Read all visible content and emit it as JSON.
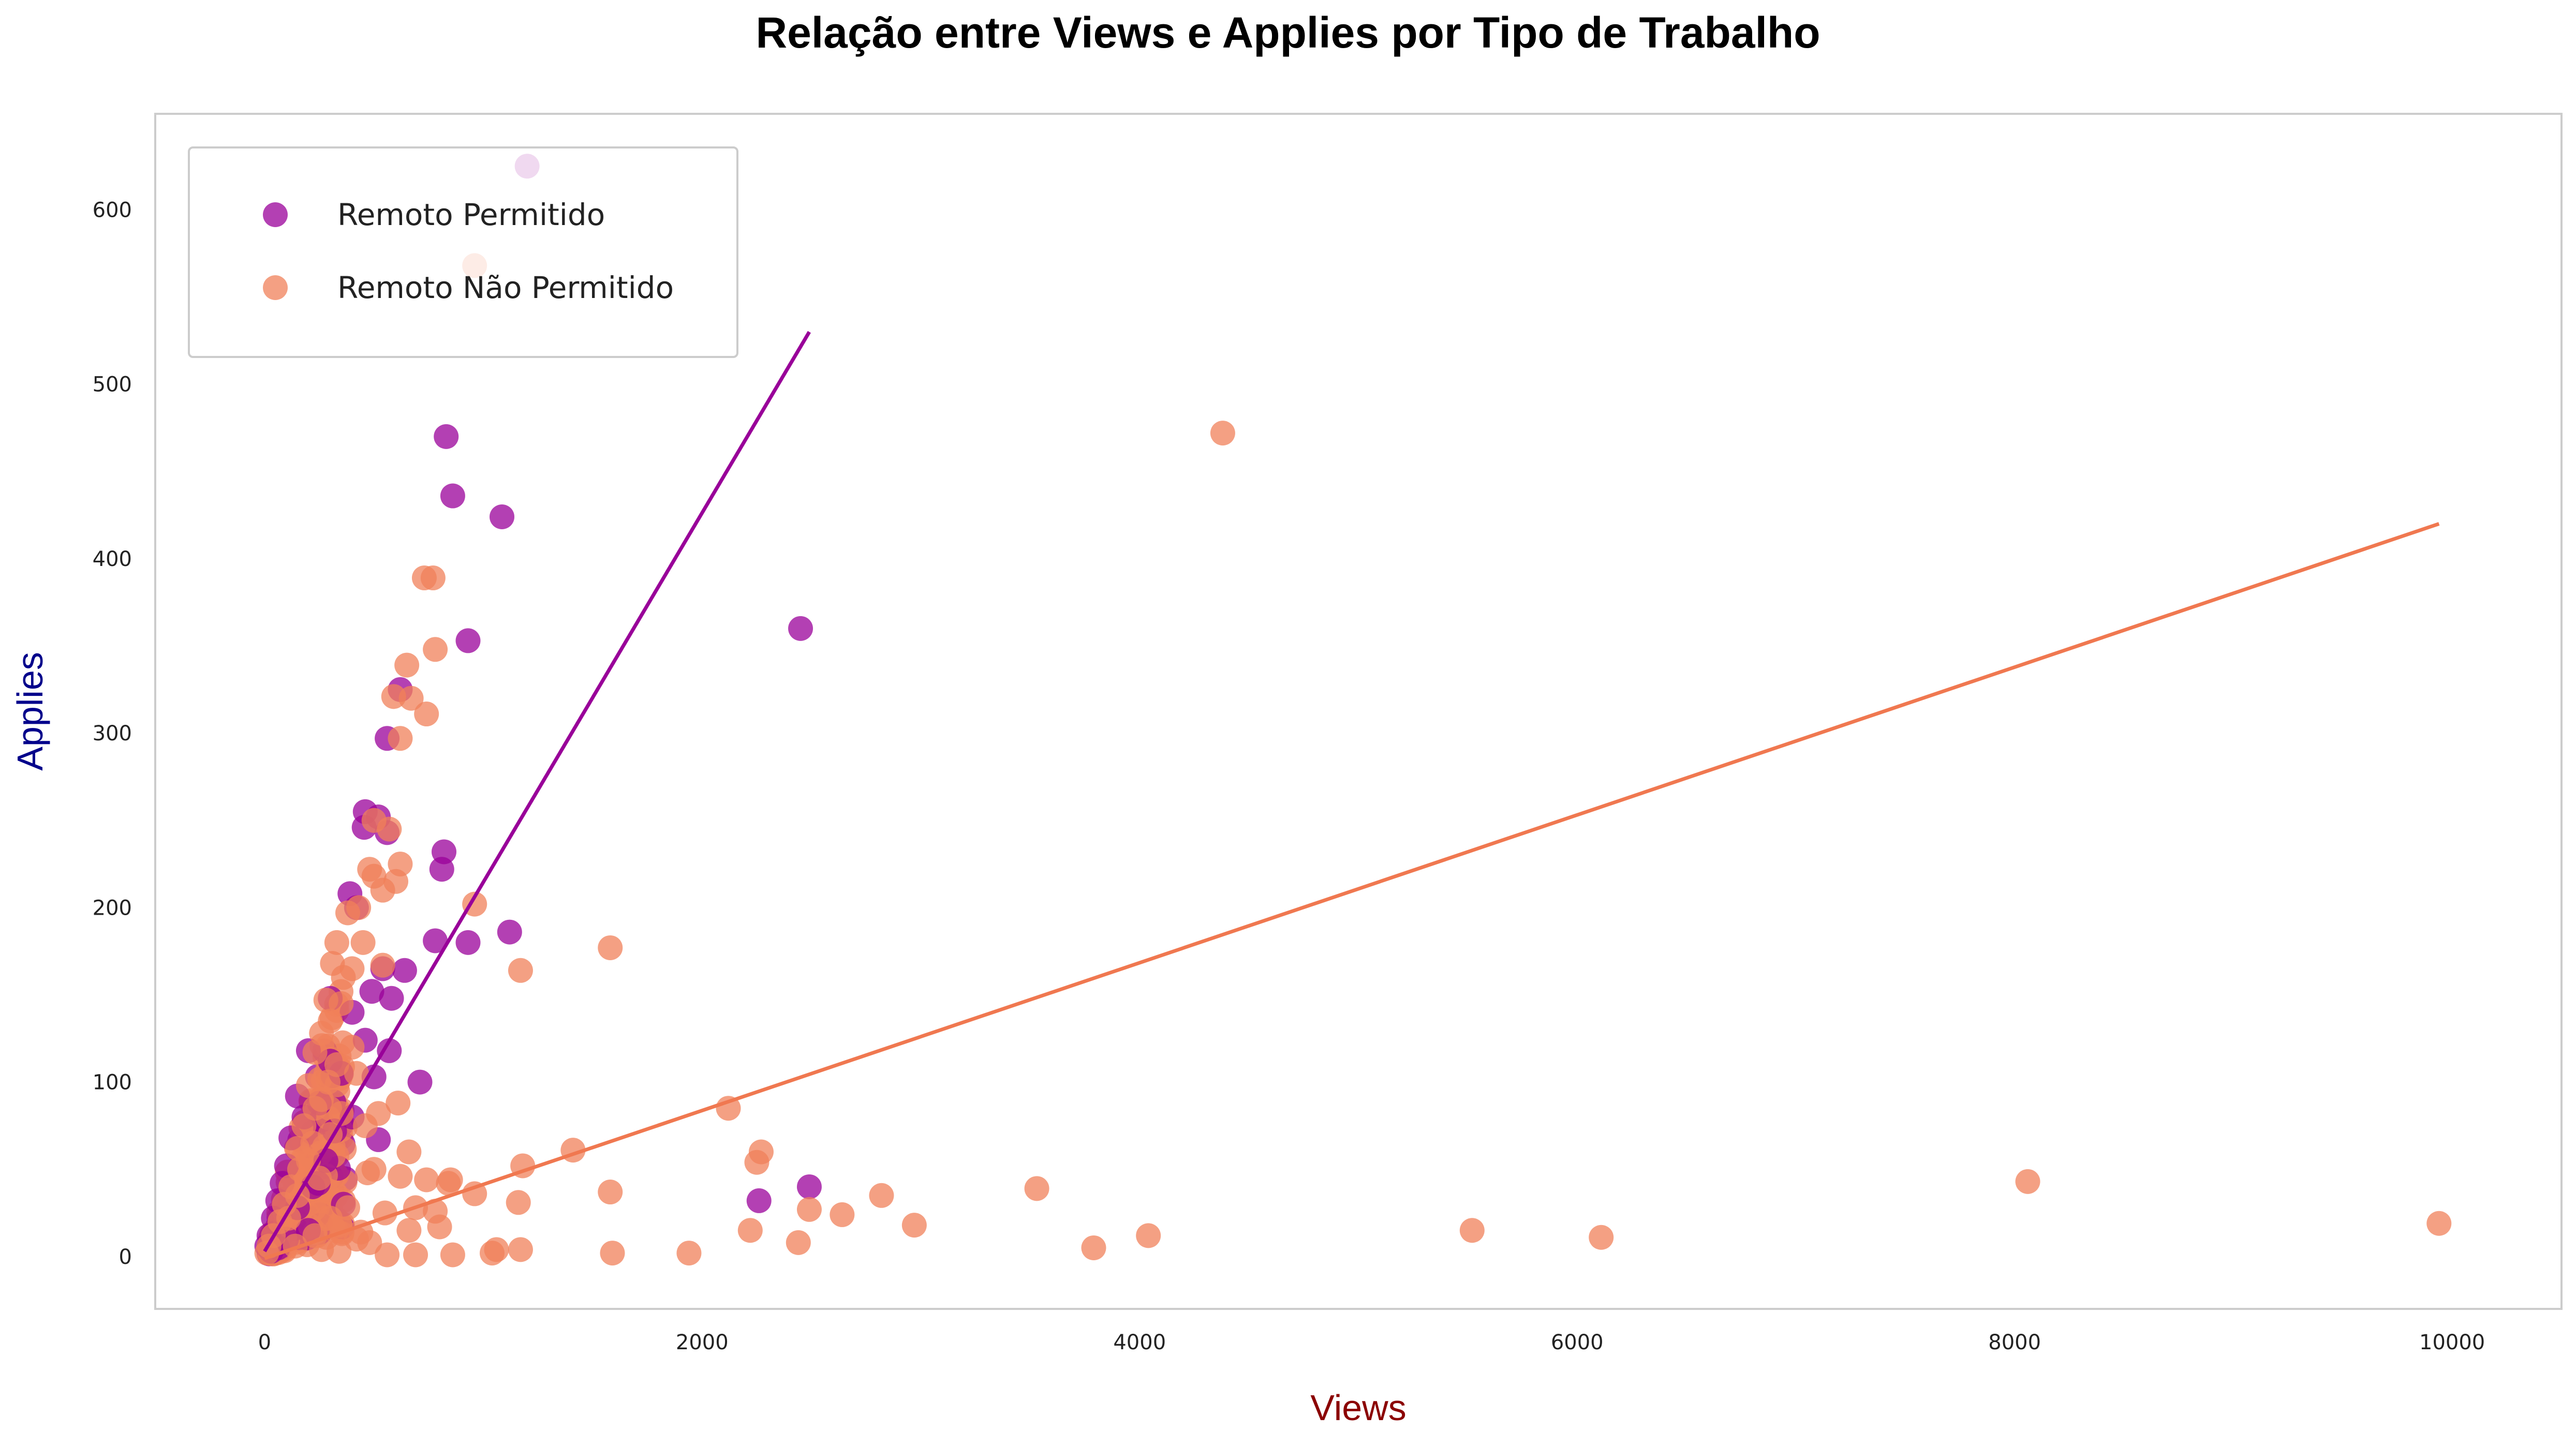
{
  "chart_data": {
    "type": "scatter",
    "title": "Relação entre Views e Applies por Tipo de Trabalho",
    "xlabel": "Views",
    "ylabel": "Applies",
    "xlim": [
      -500,
      10500
    ],
    "ylim": [
      -30,
      655
    ],
    "xticks": [
      0,
      2000,
      4000,
      6000,
      8000,
      10000
    ],
    "yticks": [
      0,
      100,
      200,
      300,
      400,
      500,
      600
    ],
    "grid": false,
    "legend_position": "top-left",
    "series": [
      {
        "name": "Remoto Permitido",
        "color": "#990099",
        "points": [
          [
            1200,
            625
          ],
          [
            830,
            470
          ],
          [
            860,
            436
          ],
          [
            1085,
            424
          ],
          [
            930,
            353
          ],
          [
            2450,
            360
          ],
          [
            620,
            325
          ],
          [
            560,
            297
          ],
          [
            460,
            255
          ],
          [
            455,
            246
          ],
          [
            560,
            243
          ],
          [
            520,
            252
          ],
          [
            820,
            232
          ],
          [
            810,
            222
          ],
          [
            390,
            208
          ],
          [
            420,
            200
          ],
          [
            780,
            181
          ],
          [
            930,
            180
          ],
          [
            1120,
            186
          ],
          [
            640,
            164
          ],
          [
            540,
            165
          ],
          [
            490,
            152
          ],
          [
            580,
            148
          ],
          [
            400,
            140
          ],
          [
            460,
            124
          ],
          [
            570,
            118
          ],
          [
            300,
            148
          ],
          [
            200,
            118
          ],
          [
            300,
            112
          ],
          [
            350,
            105
          ],
          [
            500,
            103
          ],
          [
            710,
            100
          ],
          [
            150,
            92
          ],
          [
            250,
            88
          ],
          [
            400,
            80
          ],
          [
            520,
            67
          ],
          [
            180,
            80
          ],
          [
            120,
            68
          ],
          [
            100,
            52
          ],
          [
            80,
            42
          ],
          [
            60,
            32
          ],
          [
            40,
            22
          ],
          [
            20,
            12
          ],
          [
            10,
            6
          ],
          [
            30,
            3
          ],
          [
            150,
            28
          ],
          [
            220,
            40
          ],
          [
            280,
            55
          ],
          [
            320,
            72
          ],
          [
            360,
            30
          ],
          [
            2260,
            32
          ],
          [
            2490,
            40
          ],
          [
            100,
            10
          ],
          [
            60,
            5
          ],
          [
            200,
            15
          ]
        ]
      },
      {
        "name": "Remoto Não Permitido",
        "color": "#f0805a",
        "points": [
          [
            960,
            568
          ],
          [
            4380,
            472
          ],
          [
            730,
            389
          ],
          [
            770,
            389
          ],
          [
            780,
            348
          ],
          [
            650,
            339
          ],
          [
            670,
            320
          ],
          [
            590,
            321
          ],
          [
            740,
            311
          ],
          [
            620,
            297
          ],
          [
            500,
            250
          ],
          [
            570,
            245
          ],
          [
            480,
            222
          ],
          [
            620,
            225
          ],
          [
            500,
            218
          ],
          [
            540,
            210
          ],
          [
            600,
            215
          ],
          [
            960,
            202
          ],
          [
            430,
            200
          ],
          [
            380,
            197
          ],
          [
            450,
            180
          ],
          [
            330,
            180
          ],
          [
            310,
            168
          ],
          [
            540,
            167
          ],
          [
            1580,
            177
          ],
          [
            1170,
            164
          ],
          [
            400,
            165
          ],
          [
            360,
            160
          ],
          [
            280,
            147
          ],
          [
            350,
            145
          ],
          [
            300,
            135
          ],
          [
            260,
            128
          ],
          [
            400,
            120
          ],
          [
            230,
            117
          ],
          [
            330,
            110
          ],
          [
            290,
            100
          ],
          [
            420,
            105
          ],
          [
            200,
            98
          ],
          [
            260,
            90
          ],
          [
            610,
            88
          ],
          [
            230,
            85
          ],
          [
            350,
            82
          ],
          [
            520,
            82
          ],
          [
            2120,
            85
          ],
          [
            180,
            75
          ],
          [
            300,
            70
          ],
          [
            460,
            75
          ],
          [
            150,
            62
          ],
          [
            1410,
            61
          ],
          [
            2270,
            60
          ],
          [
            2250,
            54
          ],
          [
            1180,
            52
          ],
          [
            660,
            60
          ],
          [
            500,
            50
          ],
          [
            470,
            48
          ],
          [
            620,
            46
          ],
          [
            740,
            44
          ],
          [
            850,
            44
          ],
          [
            840,
            42
          ],
          [
            960,
            36
          ],
          [
            1580,
            37
          ],
          [
            3530,
            39
          ],
          [
            8060,
            43
          ],
          [
            2820,
            35
          ],
          [
            1160,
            31
          ],
          [
            690,
            28
          ],
          [
            780,
            26
          ],
          [
            2490,
            27
          ],
          [
            2640,
            24
          ],
          [
            550,
            25
          ],
          [
            9940,
            19
          ],
          [
            2970,
            18
          ],
          [
            800,
            17
          ],
          [
            660,
            15
          ],
          [
            2220,
            15
          ],
          [
            5520,
            15
          ],
          [
            4040,
            12
          ],
          [
            6110,
            11
          ],
          [
            2440,
            8
          ],
          [
            3790,
            5
          ],
          [
            1170,
            4
          ],
          [
            1590,
            2
          ],
          [
            1940,
            2
          ],
          [
            1040,
            2
          ],
          [
            1060,
            4
          ],
          [
            860,
            1
          ],
          [
            690,
            1
          ],
          [
            560,
            1
          ],
          [
            420,
            10
          ],
          [
            440,
            14
          ],
          [
            340,
            3
          ],
          [
            120,
            40
          ],
          [
            90,
            30
          ],
          [
            160,
            50
          ],
          [
            70,
            20
          ],
          [
            40,
            12
          ],
          [
            20,
            6
          ],
          [
            10,
            2
          ],
          [
            230,
            12
          ],
          [
            260,
            4
          ],
          [
            300,
            22
          ],
          [
            380,
            28
          ],
          [
            480,
            8
          ],
          [
            140,
            6
          ],
          [
            200,
            55
          ],
          [
            220,
            65
          ],
          [
            150,
            35
          ],
          [
            110,
            22
          ],
          [
            250,
            45
          ]
        ]
      }
    ],
    "trend_lines": [
      {
        "series": "Remoto Permitido",
        "color": "#990099",
        "x": [
          0,
          2490
        ],
        "y": [
          3,
          530
        ]
      },
      {
        "series": "Remoto Não Permitido",
        "color": "#f07850",
        "x": [
          0,
          9940
        ],
        "y": [
          -1,
          420
        ]
      }
    ],
    "dense_cluster": {
      "x_range": [
        20,
        370
      ],
      "slope_min": 0.04,
      "slope_max": 0.42,
      "count": 260
    }
  }
}
